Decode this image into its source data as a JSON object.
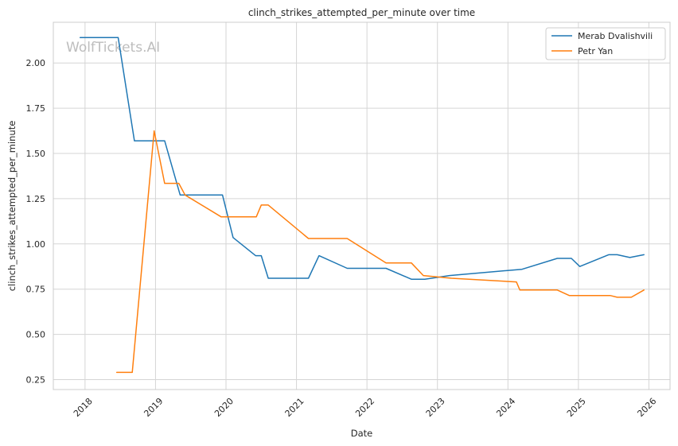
{
  "chart_data": {
    "type": "line",
    "title": "clinch_strikes_attempted_per_minute over time",
    "xlabel": "Date",
    "ylabel": "clinch_strikes_attempted_per_minute",
    "watermark": "WolfTickets.AI",
    "xlim": [
      2017.55,
      2026.3
    ],
    "ylim": [
      0.195,
      2.225
    ],
    "x_ticks": [
      2018,
      2019,
      2020,
      2021,
      2022,
      2023,
      2024,
      2025,
      2026
    ],
    "x_tick_labels": [
      "2018",
      "2019",
      "2020",
      "2021",
      "2022",
      "2023",
      "2024",
      "2025",
      "2026"
    ],
    "y_ticks": [
      0.25,
      0.5,
      0.75,
      1.0,
      1.25,
      1.5,
      1.75,
      2.0
    ],
    "y_tick_labels": [
      "0.25",
      "0.50",
      "0.75",
      "1.00",
      "1.25",
      "1.50",
      "1.75",
      "2.00"
    ],
    "grid": true,
    "legend_position": "top-right",
    "series": [
      {
        "name": "Merab Dvalishvili",
        "color": "#1f77b4",
        "x": [
          2017.93,
          2018.47,
          2018.7,
          2019.13,
          2019.35,
          2019.95,
          2020.1,
          2020.42,
          2020.5,
          2020.6,
          2021.17,
          2021.32,
          2021.72,
          2022.27,
          2022.63,
          2022.82,
          2023.17,
          2024.2,
          2024.7,
          2024.9,
          2025.02,
          2025.43,
          2025.55,
          2025.73,
          2025.93
        ],
        "y": [
          2.14,
          2.14,
          1.57,
          1.57,
          1.27,
          1.27,
          1.035,
          0.935,
          0.935,
          0.81,
          0.81,
          0.935,
          0.865,
          0.865,
          0.805,
          0.805,
          0.825,
          0.86,
          0.92,
          0.92,
          0.875,
          0.94,
          0.94,
          0.925,
          0.94
        ]
      },
      {
        "name": "Petr Yan",
        "color": "#ff7f0e",
        "x": [
          2018.45,
          2018.67,
          2018.98,
          2019.13,
          2019.33,
          2019.42,
          2019.93,
          2020.43,
          2020.5,
          2020.6,
          2021.17,
          2021.72,
          2022.27,
          2022.63,
          2022.8,
          2023.2,
          2024.12,
          2024.17,
          2024.7,
          2024.87,
          2025.45,
          2025.55,
          2025.75,
          2025.93
        ],
        "y": [
          0.29,
          0.29,
          1.625,
          1.335,
          1.335,
          1.27,
          1.15,
          1.15,
          1.215,
          1.215,
          1.03,
          1.03,
          0.895,
          0.895,
          0.825,
          0.81,
          0.79,
          0.745,
          0.745,
          0.715,
          0.715,
          0.705,
          0.705,
          0.745
        ]
      }
    ]
  }
}
